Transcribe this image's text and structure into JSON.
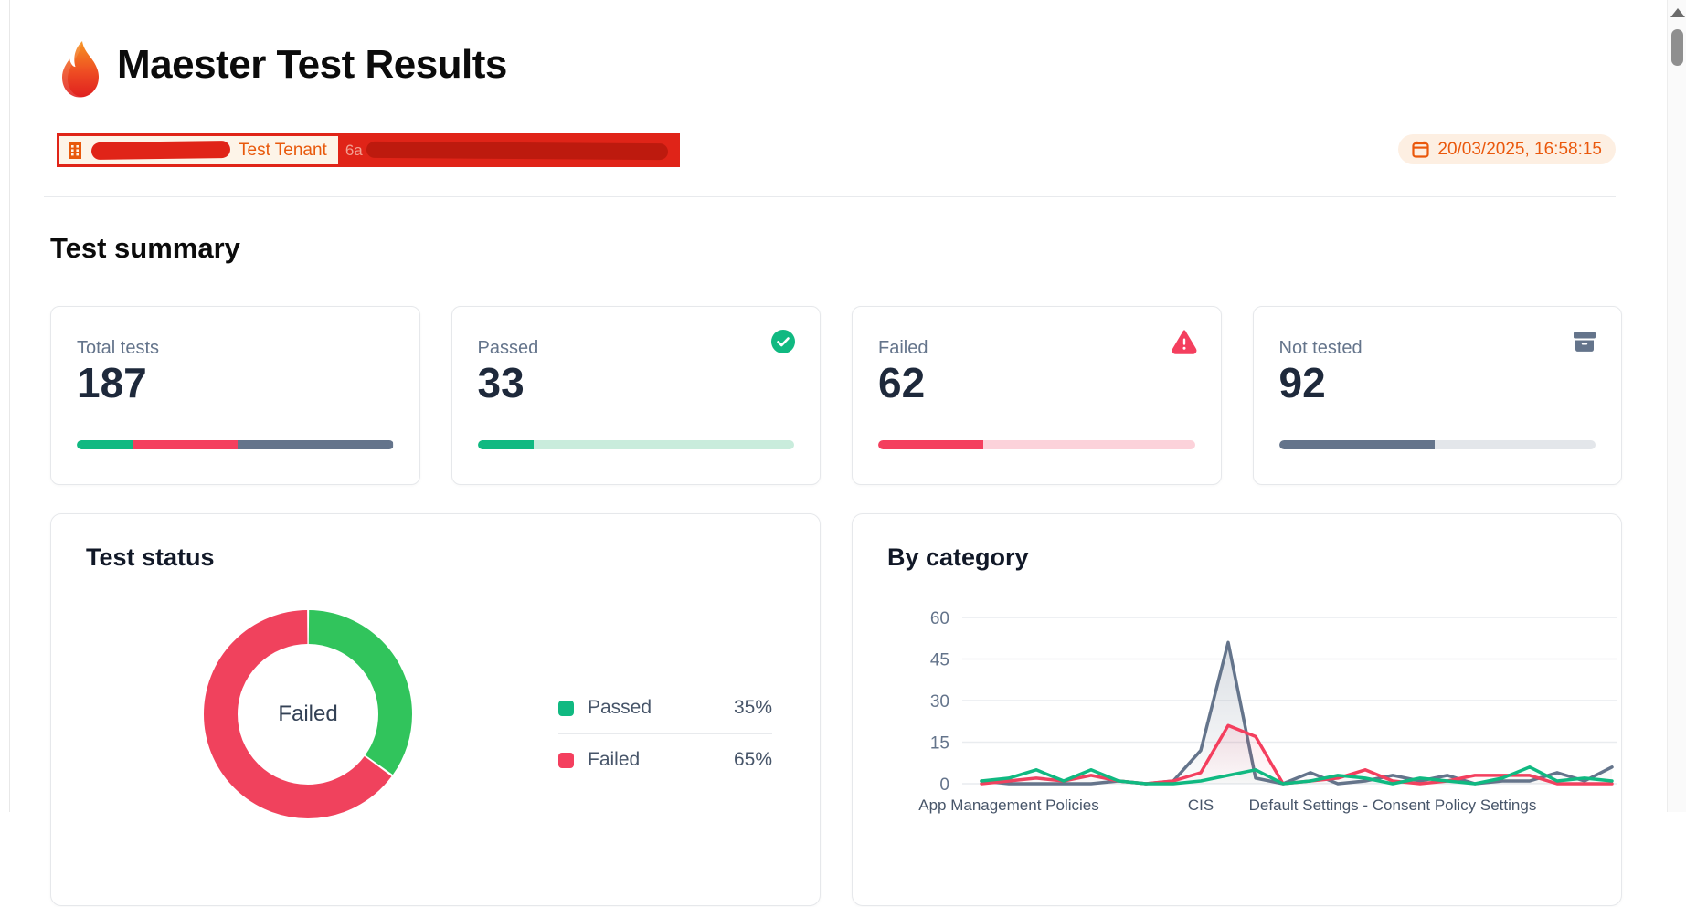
{
  "header": {
    "app_title": "Maester Test Results",
    "tenant_bar": {
      "tenant_name": "Test Tenant",
      "tenant_id_visible": "6a",
      "redaction_color": "#e02418",
      "redaction_dark_color": "#bd1a0e"
    },
    "generated_at": "20/03/2025, 16:58:15"
  },
  "summary": {
    "heading": "Test summary",
    "cards": [
      {
        "label": "Total tests",
        "value": "187",
        "icon": null,
        "bar": {
          "track": "#e9ecef",
          "segments": [
            {
              "color": "#10b981",
              "pct": 17.65
            },
            {
              "color": "#f43f5e",
              "pct": 33.16
            },
            {
              "color": "#64748b",
              "pct": 49.19
            }
          ]
        }
      },
      {
        "label": "Passed",
        "value": "33",
        "icon": "check-circle",
        "icon_color": "#10b981",
        "bar": {
          "track": "#c9ecdc",
          "segments": [
            {
              "color": "#10b981",
              "pct": 17.65
            }
          ]
        }
      },
      {
        "label": "Failed",
        "value": "62",
        "icon": "warning-triangle",
        "icon_color": "#f43f5e",
        "bar": {
          "track": "#fcd2da",
          "segments": [
            {
              "color": "#f43f5e",
              "pct": 33.16
            }
          ]
        }
      },
      {
        "label": "Not tested",
        "value": "92",
        "icon": "archive-box",
        "icon_color": "#64748b",
        "bar": {
          "track": "#e3e6ea",
          "segments": [
            {
              "color": "#64748b",
              "pct": 49.19
            }
          ]
        }
      }
    ]
  },
  "status": {
    "title": "Test status",
    "center_label": "Failed",
    "legend": [
      {
        "label": "Passed",
        "value": "35%",
        "color": "#10b981"
      },
      {
        "label": "Failed",
        "value": "65%",
        "color": "#f43f5e"
      }
    ]
  },
  "category": {
    "title": "By category"
  },
  "chart_data": [
    {
      "type": "pie",
      "title": "Test status",
      "donut": true,
      "center_label": "Failed",
      "labels": [
        "Passed",
        "Failed"
      ],
      "values": [
        35,
        65
      ],
      "colors": [
        "#31c45c",
        "#f0425d"
      ],
      "legend_position": "right"
    },
    {
      "type": "line",
      "title": "By category",
      "x_labels": [
        "",
        "App Management Policies",
        "",
        "",
        "",
        "",
        "",
        "",
        "CIS",
        "",
        "",
        "",
        "",
        "",
        "",
        "Default Settings - Consent Policy Settings",
        "",
        "",
        "",
        "",
        "",
        "",
        "",
        ""
      ],
      "series": [
        {
          "name": "Not tested",
          "color": "#64748b",
          "values": [
            1,
            0,
            0,
            0,
            0,
            1,
            0,
            1,
            12,
            51,
            2,
            0,
            4,
            0,
            1,
            3,
            1,
            3,
            0,
            1,
            1,
            4,
            1,
            6
          ]
        },
        {
          "name": "Failed",
          "color": "#f43f5e",
          "values": [
            0,
            1,
            2,
            1,
            3,
            1,
            0,
            1,
            4,
            21,
            17,
            0,
            1,
            2,
            5,
            1,
            0,
            1,
            3,
            3,
            3,
            0,
            0,
            0
          ]
        },
        {
          "name": "Passed",
          "color": "#10b981",
          "values": [
            1,
            2,
            5,
            1,
            5,
            1,
            0,
            0,
            1,
            3,
            5,
            0,
            1,
            3,
            2,
            0,
            2,
            1,
            0,
            2,
            6,
            1,
            2,
            1
          ]
        }
      ],
      "ylim": [
        0,
        60
      ],
      "yticks": [
        0,
        15,
        30,
        45,
        60
      ],
      "grid": true
    }
  ]
}
